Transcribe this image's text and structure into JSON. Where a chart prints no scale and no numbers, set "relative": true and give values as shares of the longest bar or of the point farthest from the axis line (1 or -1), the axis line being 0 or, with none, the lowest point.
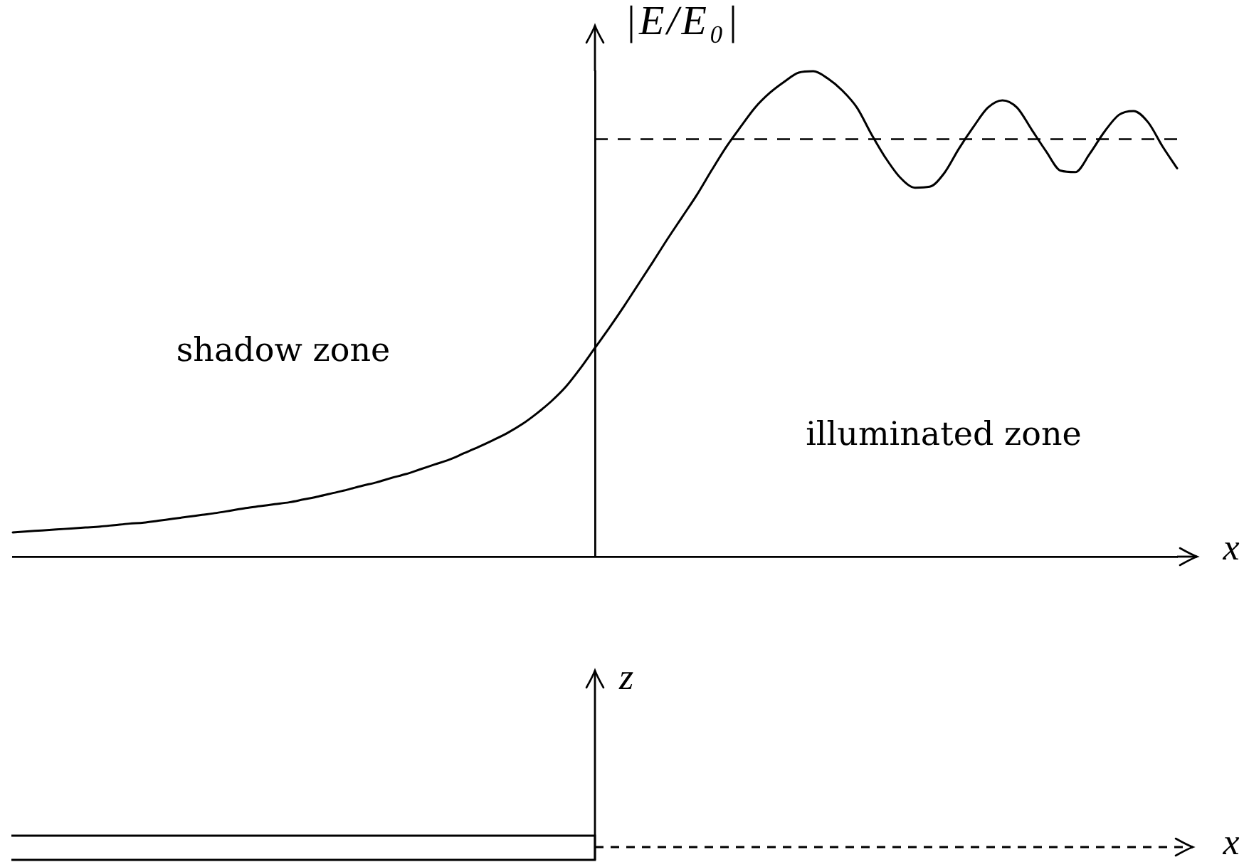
{
  "chart_data": [
    {
      "type": "line",
      "xlabel": "x",
      "ylabel": "|E/E₀|",
      "annotations": [
        "shadow zone",
        "illuminated zone"
      ],
      "relative": true,
      "categories": [
        null,
        null,
        null,
        null,
        null,
        null,
        null,
        null,
        null,
        null,
        null,
        null,
        null,
        null,
        null,
        null,
        null,
        null,
        null,
        null,
        null,
        null,
        null,
        null,
        null,
        null,
        null,
        null,
        null,
        null,
        null,
        null,
        null,
        null,
        null,
        null,
        null,
        null,
        null,
        null,
        null,
        null,
        null,
        null,
        null,
        null,
        null,
        null,
        null,
        null,
        null,
        null,
        null,
        null,
        null,
        null,
        null,
        null,
        null,
        null,
        null,
        null,
        null,
        null,
        null,
        null,
        null,
        null,
        null,
        null,
        null,
        null,
        null,
        null,
        null,
        null,
        null,
        null,
        null,
        null,
        null
      ],
      "series": [
        {
          "color": "#000000",
          "values": [
            0.05,
            0.052,
            0.054,
            0.056,
            0.058,
            0.06,
            0.062,
            0.065,
            0.068,
            0.07,
            0.074,
            0.078,
            0.082,
            0.086,
            0.09,
            0.095,
            0.1,
            0.104,
            0.108,
            0.112,
            0.118,
            0.124,
            0.131,
            0.138,
            0.146,
            0.153,
            0.162,
            0.17,
            0.18,
            0.19,
            0.2,
            0.213,
            0.226,
            0.24,
            0.255,
            0.273,
            0.295,
            0.32,
            0.35,
            0.388,
            0.43,
            0.472,
            0.516,
            0.562,
            0.608,
            0.655,
            0.7,
            0.745,
            0.795,
            0.843,
            0.885,
            0.925,
            0.955,
            0.978,
            0.997,
            1,
            0.985,
            0.96,
            0.925,
            0.87,
            0.82,
            0.78,
            0.76,
            0.762,
            0.79,
            0.84,
            0.885,
            0.925,
            0.94,
            0.925,
            0.88,
            0.835,
            0.795,
            0.792,
            0.83,
            0.875,
            0.91,
            0.918,
            0.895,
            0.845,
            0.8
          ]
        }
      ],
      "ref_lines": [
        {
          "axis": "y",
          "value": 0.86,
          "line_style": "dashed"
        }
      ],
      "legend": false,
      "grid": false,
      "marker": "none",
      "line_style": "solid"
    },
    {
      "type": "other",
      "xlabel": "x",
      "ylabel": "z"
    }
  ]
}
